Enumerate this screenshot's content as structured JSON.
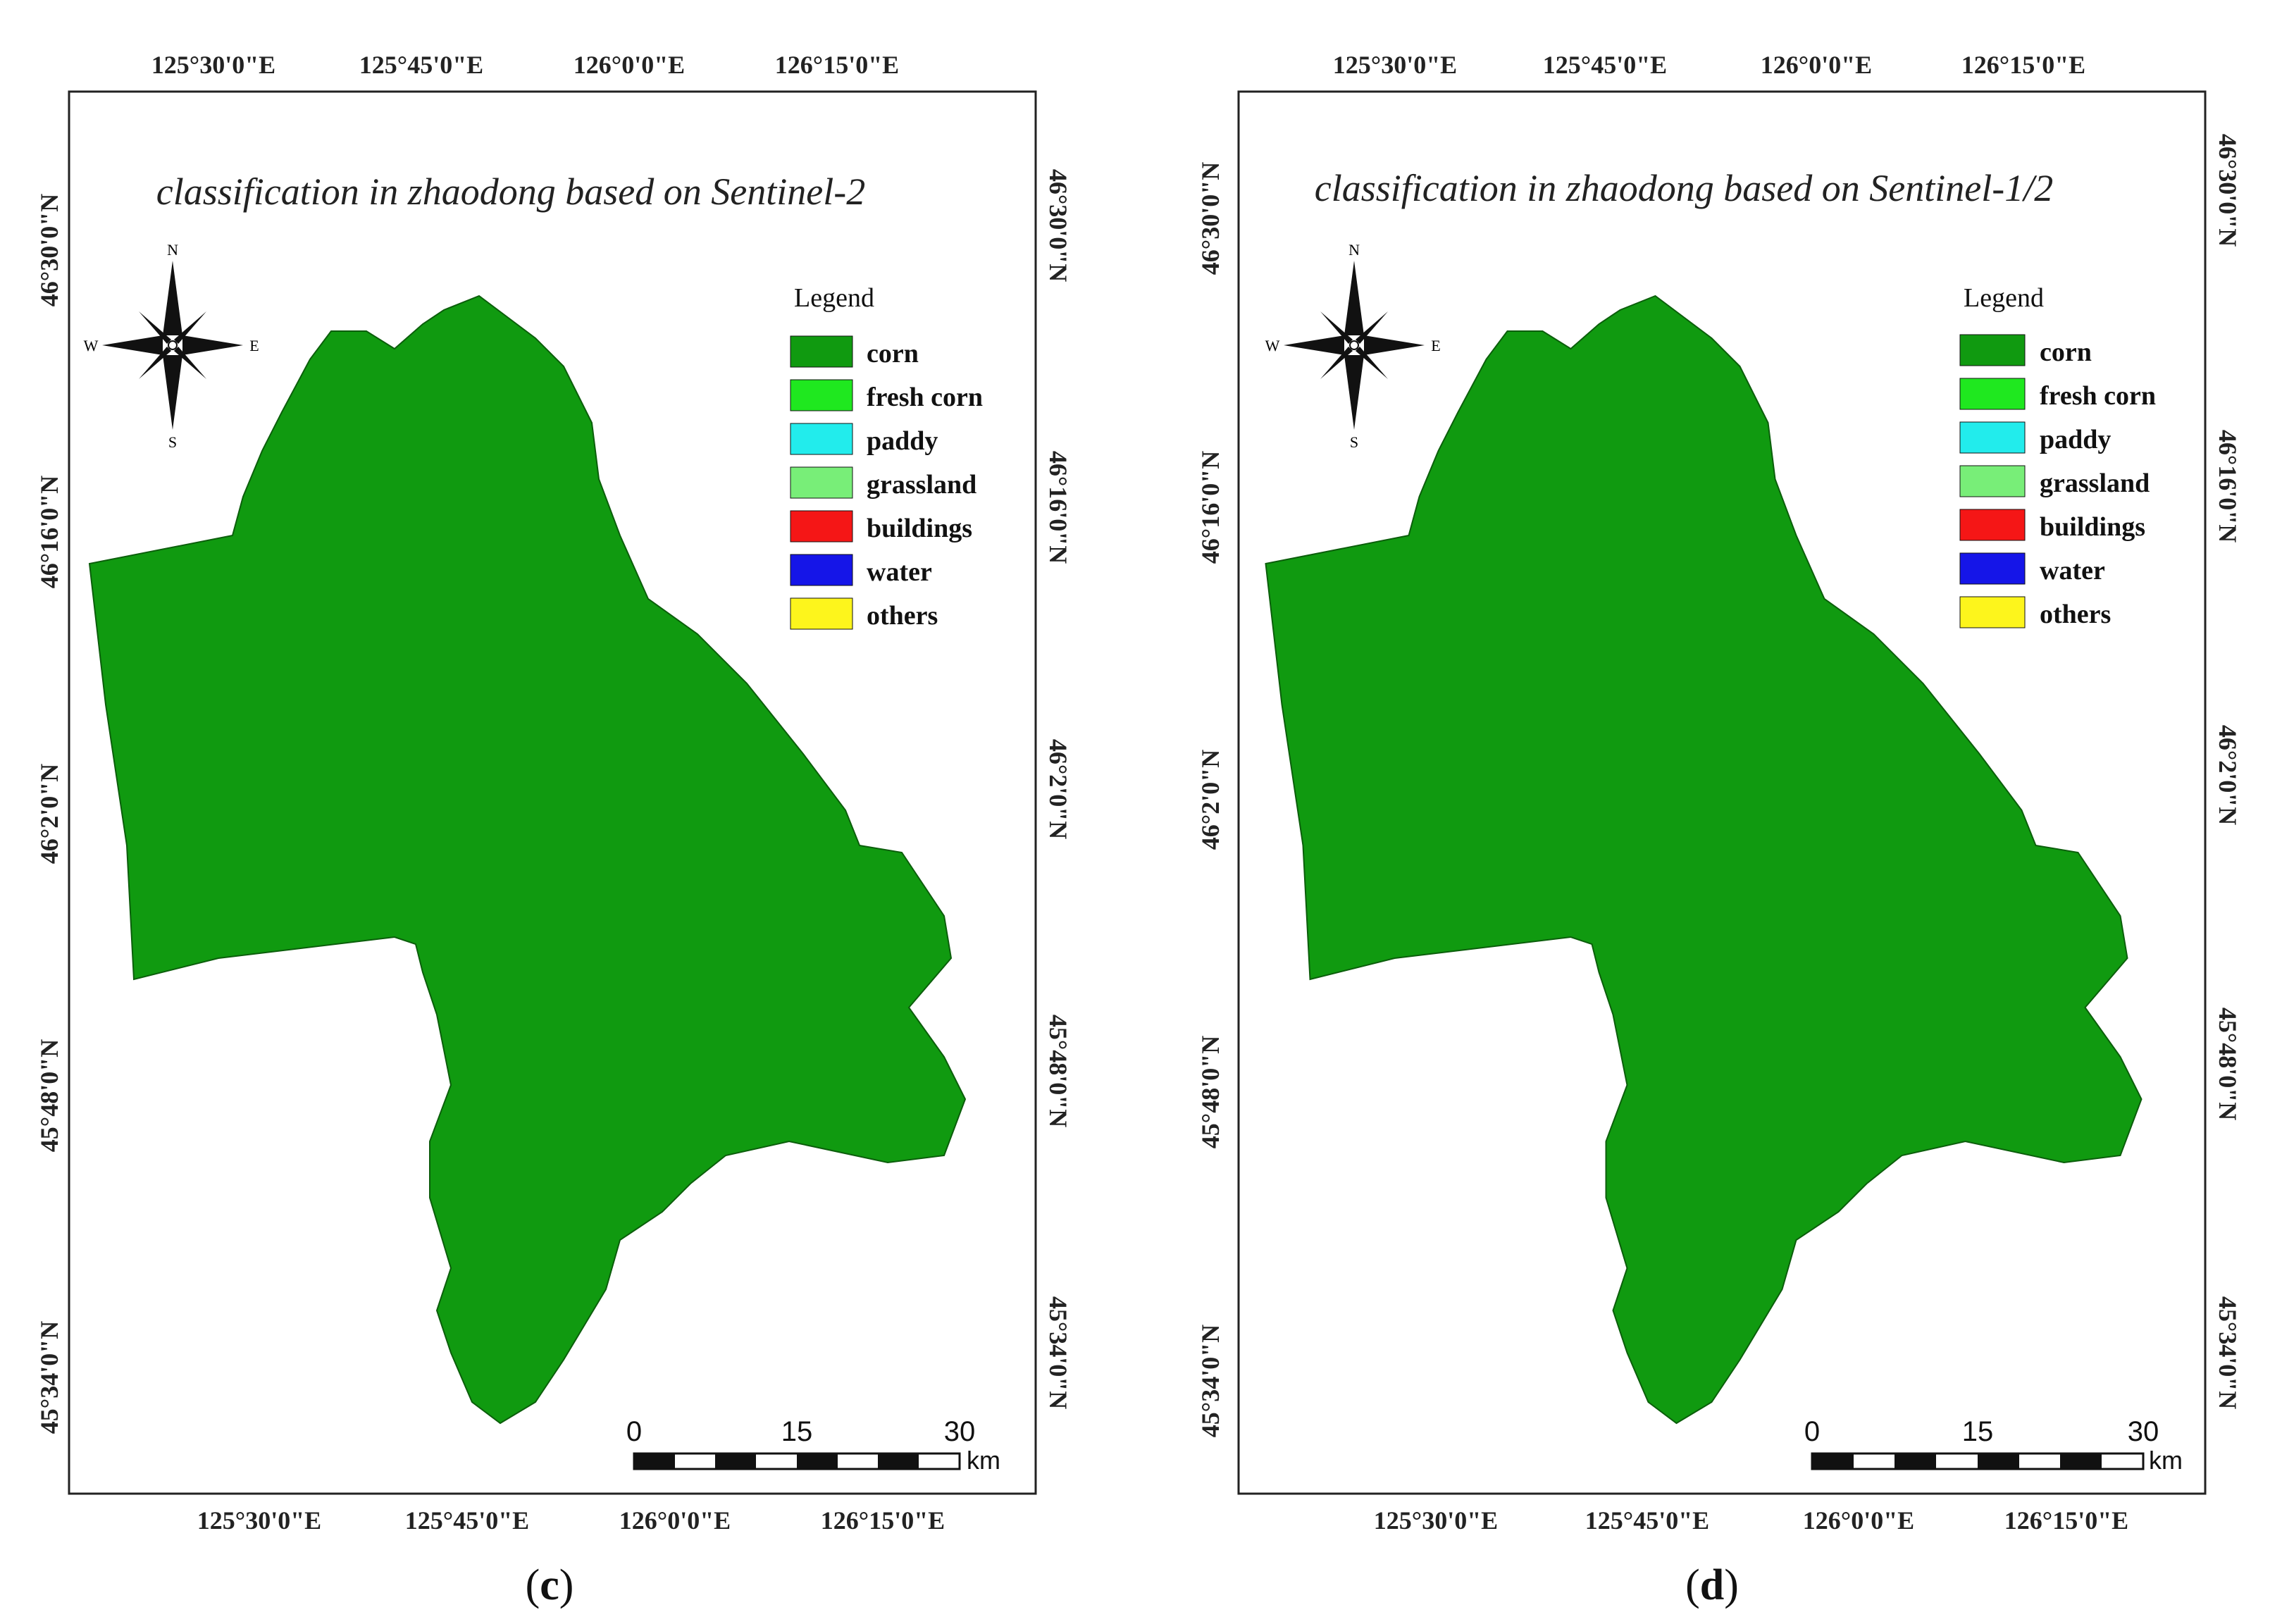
{
  "colors": {
    "corn": "#109a10",
    "fresh_corn": "#1fe81f",
    "paddy": "#22ecec",
    "grassland": "#78ee78",
    "buildings": "#f51616",
    "water": "#1515e8",
    "others": "#fdf51c",
    "frame": "#222222"
  },
  "panels": [
    {
      "id": "c",
      "title": "classification in zhaodong based on Sentinel-2",
      "caption_prefix": "(",
      "caption_letter": "c",
      "caption_suffix": ")",
      "top_lon_labels": [
        "125°30'0\"E",
        "125°45'0\"E",
        "126°0'0\"E",
        "126°15'0\"E"
      ],
      "bottom_lon_labels": [
        "125°30'0\"E",
        "125°45'0\"E",
        "126°0'0\"E",
        "126°15'0\"E"
      ],
      "left_lat_labels": [
        "46°30'0\"N",
        "46°16'0\"N",
        "46°2'0\"N",
        "45°48'0\"N",
        "45°34'0\"N"
      ],
      "right_lat_labels": [
        "46°30'0\"N",
        "46°16'0\"N",
        "46°2'0\"N",
        "45°48'0\"N",
        "45°34'0\"N"
      ],
      "legend_title": "Legend",
      "legend_items": [
        {
          "label": "corn",
          "key": "corn"
        },
        {
          "label": "fresh corn",
          "key": "fresh_corn"
        },
        {
          "label": "paddy",
          "key": "paddy"
        },
        {
          "label": "grassland",
          "key": "grassland"
        },
        {
          "label": "buildings",
          "key": "buildings"
        },
        {
          "label": "water",
          "key": "water"
        },
        {
          "label": "others",
          "key": "others"
        }
      ],
      "compass": {
        "n": "N",
        "s": "S",
        "e": "E",
        "w": "W"
      },
      "scale": {
        "ticks": [
          "0",
          "15",
          "30"
        ],
        "unit": "km"
      }
    },
    {
      "id": "d",
      "title": "classification in zhaodong based on Sentinel-1/2",
      "caption_prefix": "(",
      "caption_letter": "d",
      "caption_suffix": ")",
      "top_lon_labels": [
        "125°30'0\"E",
        "125°45'0\"E",
        "126°0'0\"E",
        "126°15'0\"E"
      ],
      "bottom_lon_labels": [
        "125°30'0\"E",
        "125°45'0\"E",
        "126°0'0\"E",
        "126°15'0\"E"
      ],
      "left_lat_labels": [
        "46°30'0\"N",
        "46°16'0\"N",
        "46°2'0\"N",
        "45°48'0\"N",
        "45°34'0\"N"
      ],
      "right_lat_labels": [
        "46°30'0\"N",
        "46°16'0\"N",
        "46°2'0\"N",
        "45°48'0\"N",
        "45°34'0\"N"
      ],
      "legend_title": "Legend",
      "legend_items": [
        {
          "label": "corn",
          "key": "corn"
        },
        {
          "label": "fresh corn",
          "key": "fresh_corn"
        },
        {
          "label": "paddy",
          "key": "paddy"
        },
        {
          "label": "grassland",
          "key": "grassland"
        },
        {
          "label": "buildings",
          "key": "buildings"
        },
        {
          "label": "water",
          "key": "water"
        },
        {
          "label": "others",
          "key": "others"
        }
      ],
      "compass": {
        "n": "N",
        "s": "S",
        "e": "E",
        "w": "W"
      },
      "scale": {
        "ticks": [
          "0",
          "15",
          "30"
        ],
        "unit": "km"
      }
    }
  ]
}
